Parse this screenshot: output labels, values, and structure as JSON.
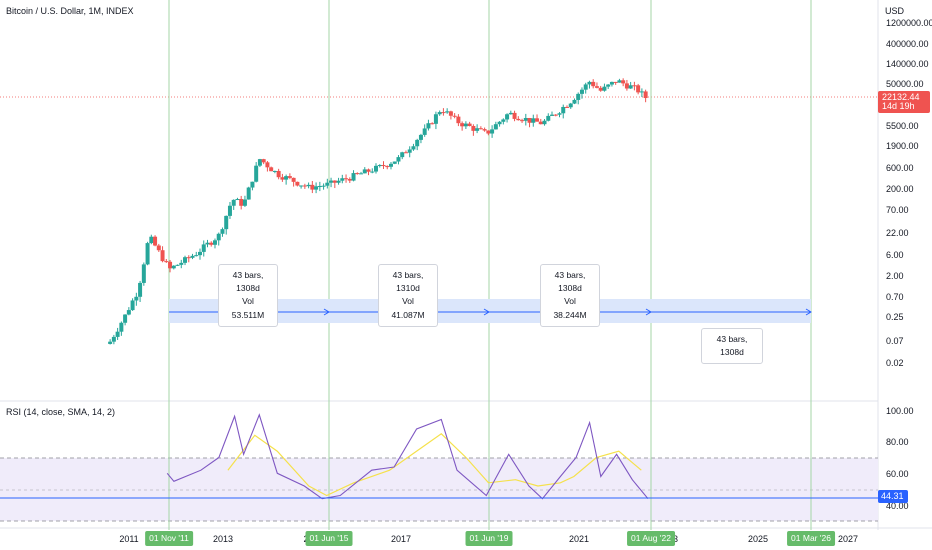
{
  "header": {
    "symbol_title": "Bitcoin / U.S. Dollar, 1M, INDEX",
    "currency": "USD"
  },
  "price_scale": {
    "labels": [
      "1200000.00",
      "400000.00",
      "140000.00",
      "50000.00",
      "5500.00",
      "1900.00",
      "600.00",
      "200.00",
      "70.00",
      "22.00",
      "6.00",
      "2.00",
      "0.70",
      "0.25",
      "0.07",
      "0.02"
    ],
    "last_price": "22132.44",
    "countdown": "14d 19h"
  },
  "rsi_pane": {
    "title": "RSI (14, close, SMA, 14, 2)",
    "labels": [
      "100.00",
      "80.00",
      "60.00",
      "40.00"
    ],
    "last_value": "44.31",
    "upper_band": 70,
    "middle_band": 50,
    "lower_band": 30
  },
  "time_axis": {
    "years": [
      "2011",
      "2013",
      "201",
      "2017",
      "2021",
      "2023",
      "2025",
      "2027"
    ],
    "markers": [
      "01 Nov '11",
      "01 Jun '15",
      "01 Jun '19",
      "01 Aug '22",
      "01 Mar '26"
    ]
  },
  "range_labels": [
    {
      "bars": "43 bars, 1308d",
      "vol": "Vol 53.511M"
    },
    {
      "bars": "43 bars, 1310d",
      "vol": "Vol 41.087M"
    },
    {
      "bars": "43 bars, 1308d",
      "vol": "Vol 38.244M"
    },
    {
      "bars": "43 bars, 1308d",
      "vol": ""
    }
  ],
  "colors": {
    "up": "#26a69a",
    "down": "#ef5350",
    "grid_marker": "#a5d6a7",
    "range_fill": "#dbe6fb",
    "range_line": "#2962ff",
    "rsi_line": "#7e57c2",
    "rsi_sma": "#f5e14b",
    "rsi_band": "#f0ecfa"
  },
  "chart_data": {
    "type": "candlestick",
    "title": "Bitcoin / U.S. Dollar, 1M, INDEX",
    "y_scale": "log",
    "ylim": [
      0.01,
      2000000
    ],
    "monthly_closes_approx": [
      {
        "date": "2010-07",
        "close": 0.06
      },
      {
        "date": "2011-06",
        "close": 17
      },
      {
        "date": "2011-11",
        "close": 3
      },
      {
        "date": "2013-04",
        "close": 140
      },
      {
        "date": "2013-11",
        "close": 1100
      },
      {
        "date": "2015-01",
        "close": 220
      },
      {
        "date": "2015-06",
        "close": 260
      },
      {
        "date": "2017-12",
        "close": 14000
      },
      {
        "date": "2018-12",
        "close": 3700
      },
      {
        "date": "2019-06",
        "close": 10800
      },
      {
        "date": "2020-03",
        "close": 6400
      },
      {
        "date": "2021-04",
        "close": 57000
      },
      {
        "date": "2021-11",
        "close": 57000
      },
      {
        "date": "2022-06",
        "close": 20000
      },
      {
        "date": "2022-07",
        "close": 22132.44
      }
    ],
    "rsi_last": 44.31
  }
}
